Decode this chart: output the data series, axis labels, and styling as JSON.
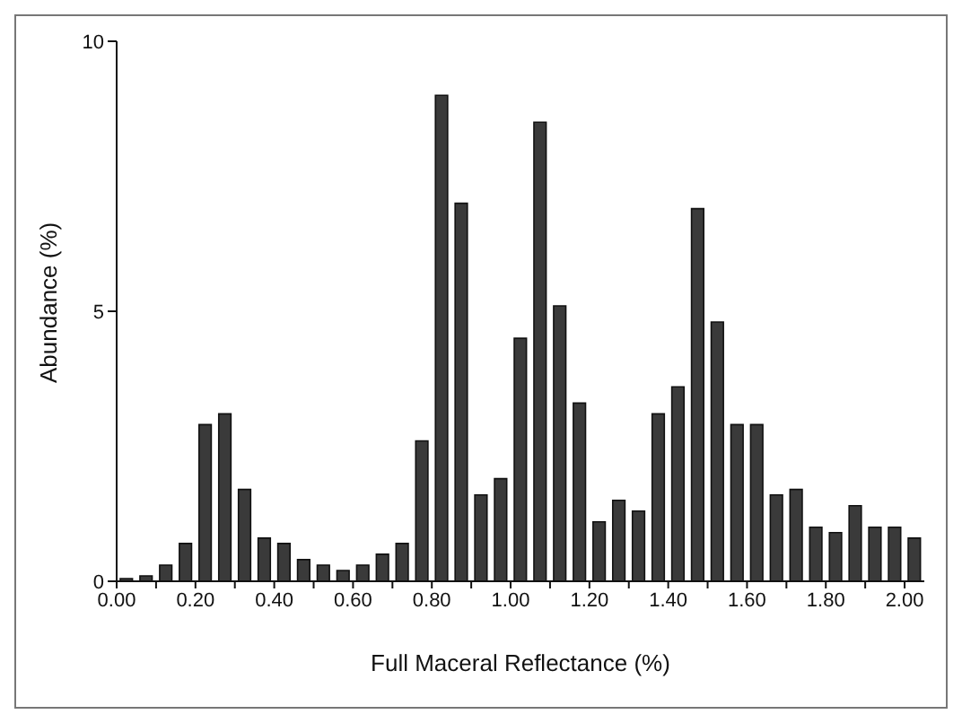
{
  "chart_data": {
    "type": "histogram",
    "xlabel": "Full Maceral Reflectance (%)",
    "ylabel": "Abundance (%)",
    "bins": [
      0,
      0.05,
      0.1,
      0.15,
      0.2,
      0.25,
      0.3,
      0.35,
      0.4,
      0.45,
      0.5,
      0.55,
      0.6,
      0.65,
      0.7,
      0.75,
      0.8,
      0.85,
      0.9,
      0.95,
      1,
      1.05,
      1.1,
      1.15,
      1.2,
      1.25,
      1.3,
      1.35,
      1.4,
      1.45,
      1.5,
      1.55,
      1.6,
      1.65,
      1.7,
      1.75,
      1.8,
      1.85,
      1.9,
      1.95,
      2,
      2.05
    ],
    "values": [
      0.05,
      0.1,
      0.3,
      0.7,
      2.9,
      3.1,
      1.7,
      0.8,
      0.7,
      0.4,
      0.3,
      0.2,
      0.3,
      0.5,
      0.7,
      2.6,
      9.0,
      7.0,
      1.6,
      1.9,
      4.5,
      8.5,
      5.1,
      3.3,
      1.1,
      1.5,
      1.3,
      3.1,
      3.6,
      6.9,
      4.8,
      2.9,
      2.9,
      1.6,
      1.7,
      1.0,
      0.9,
      1.4,
      1.0,
      1.0,
      0.8
    ],
    "color": "#3a3a3a",
    "xlim": [
      0,
      2.05
    ],
    "xticks": [
      {
        "value": 0,
        "label": "0.00"
      },
      {
        "value": 0.1,
        "label": null
      },
      {
        "value": 0.2,
        "label": "0.20"
      },
      {
        "value": 0.3,
        "label": null
      },
      {
        "value": 0.4,
        "label": "0.40"
      },
      {
        "value": 0.5,
        "label": null
      },
      {
        "value": 0.6,
        "label": "0.60"
      },
      {
        "value": 0.7,
        "label": null
      },
      {
        "value": 0.8,
        "label": "0.80"
      },
      {
        "value": 0.9,
        "label": null
      },
      {
        "value": 1,
        "label": "1.00"
      },
      {
        "value": 1.1,
        "label": null
      },
      {
        "value": 1.2,
        "label": "1.20"
      },
      {
        "value": 1.3,
        "label": null
      },
      {
        "value": 1.4,
        "label": "1.40"
      },
      {
        "value": 1.5,
        "label": null
      },
      {
        "value": 1.6,
        "label": "1.60"
      },
      {
        "value": 1.7,
        "label": null
      },
      {
        "value": 1.8,
        "label": "1.80"
      },
      {
        "value": 1.9,
        "label": null
      },
      {
        "value": 2,
        "label": "2.00"
      }
    ],
    "ylim": [
      0,
      10
    ],
    "yticks": [
      0,
      5,
      10
    ],
    "grid": false,
    "legend": false
  }
}
